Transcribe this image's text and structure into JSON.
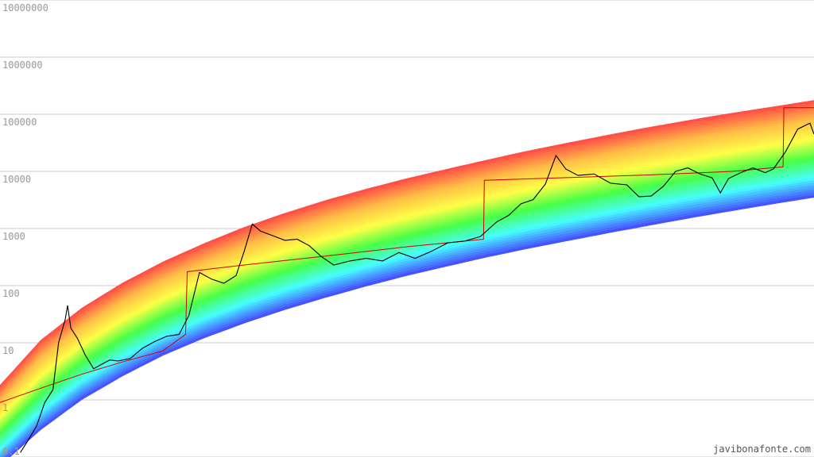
{
  "chart_data": {
    "type": "line",
    "title": "",
    "xlabel": "",
    "ylabel": "",
    "y_scale": "log",
    "ylim": [
      0.1,
      10000000
    ],
    "y_ticks": [
      {
        "value": 0.1,
        "label": "0.1"
      },
      {
        "value": 1,
        "label": "1"
      },
      {
        "value": 10,
        "label": "10"
      },
      {
        "value": 100,
        "label": "100"
      },
      {
        "value": 1000,
        "label": "1000"
      },
      {
        "value": 10000,
        "label": "10000"
      },
      {
        "value": 100000,
        "label": "100000"
      },
      {
        "value": 1000000,
        "label": "1000000"
      },
      {
        "value": 10000000,
        "label": "10000000"
      }
    ],
    "grid": true,
    "band": {
      "description": "rainbow band",
      "colors": [
        "#ff0000",
        "#ffa500",
        "#ffff00",
        "#00ff00",
        "#00ffff",
        "#0000ff"
      ],
      "upper": [
        [
          0,
          1.8
        ],
        [
          0.05,
          11
        ],
        [
          0.1,
          40
        ],
        [
          0.15,
          110
        ],
        [
          0.2,
          260
        ],
        [
          0.25,
          540
        ],
        [
          0.3,
          1050
        ],
        [
          0.35,
          1850
        ],
        [
          0.4,
          3100
        ],
        [
          0.45,
          4900
        ],
        [
          0.5,
          7500
        ],
        [
          0.55,
          11000
        ],
        [
          0.6,
          16000
        ],
        [
          0.65,
          23000
        ],
        [
          0.7,
          32000
        ],
        [
          0.75,
          44000
        ],
        [
          0.8,
          60000
        ],
        [
          0.85,
          80000
        ],
        [
          0.9,
          105000
        ],
        [
          0.95,
          135000
        ],
        [
          1.0,
          175000
        ]
      ],
      "lower": [
        [
          0,
          0.07
        ],
        [
          0.05,
          0.3
        ],
        [
          0.1,
          1
        ],
        [
          0.15,
          2.6
        ],
        [
          0.2,
          6
        ],
        [
          0.25,
          12
        ],
        [
          0.3,
          22
        ],
        [
          0.35,
          38
        ],
        [
          0.4,
          62
        ],
        [
          0.45,
          98
        ],
        [
          0.5,
          150
        ],
        [
          0.55,
          220
        ],
        [
          0.6,
          320
        ],
        [
          0.65,
          450
        ],
        [
          0.7,
          620
        ],
        [
          0.75,
          850
        ],
        [
          0.8,
          1150
        ],
        [
          0.85,
          1550
        ],
        [
          0.9,
          2050
        ],
        [
          0.95,
          2700
        ],
        [
          1.0,
          3500
        ]
      ]
    },
    "series": [
      {
        "color": "#cc0000",
        "values": [
          [
            0,
            0.9
          ],
          [
            0.05,
            1.6
          ],
          [
            0.1,
            2.8
          ],
          [
            0.15,
            4.6
          ],
          [
            0.2,
            7.2
          ],
          [
            0.228,
            14
          ],
          [
            0.23,
            175
          ],
          [
            0.3,
            230
          ],
          [
            0.4,
            330
          ],
          [
            0.5,
            480
          ],
          [
            0.594,
            650
          ],
          [
            0.595,
            7000
          ],
          [
            0.7,
            7800
          ],
          [
            0.8,
            8700
          ],
          [
            0.9,
            10000
          ],
          [
            0.962,
            12000
          ],
          [
            0.963,
            130000
          ],
          [
            1.0,
            130000
          ]
        ]
      },
      {
        "color": "#000000",
        "values": [
          [
            0.025,
            0.12
          ],
          [
            0.035,
            0.2
          ],
          [
            0.045,
            0.35
          ],
          [
            0.055,
            0.9
          ],
          [
            0.065,
            1.5
          ],
          [
            0.072,
            10
          ],
          [
            0.08,
            25
          ],
          [
            0.083,
            45
          ],
          [
            0.087,
            18
          ],
          [
            0.095,
            12
          ],
          [
            0.105,
            6
          ],
          [
            0.115,
            3.5
          ],
          [
            0.125,
            4.2
          ],
          [
            0.135,
            5
          ],
          [
            0.145,
            4.8
          ],
          [
            0.16,
            5.3
          ],
          [
            0.175,
            8
          ],
          [
            0.19,
            10.5
          ],
          [
            0.205,
            13
          ],
          [
            0.22,
            14
          ],
          [
            0.232,
            30
          ],
          [
            0.245,
            170
          ],
          [
            0.26,
            130
          ],
          [
            0.275,
            110
          ],
          [
            0.29,
            150
          ],
          [
            0.3,
            400
          ],
          [
            0.31,
            1200
          ],
          [
            0.32,
            900
          ],
          [
            0.335,
            750
          ],
          [
            0.35,
            620
          ],
          [
            0.365,
            650
          ],
          [
            0.38,
            500
          ],
          [
            0.395,
            320
          ],
          [
            0.41,
            230
          ],
          [
            0.43,
            270
          ],
          [
            0.45,
            300
          ],
          [
            0.47,
            270
          ],
          [
            0.49,
            380
          ],
          [
            0.51,
            300
          ],
          [
            0.53,
            400
          ],
          [
            0.55,
            560
          ],
          [
            0.57,
            600
          ],
          [
            0.59,
            720
          ],
          [
            0.61,
            1300
          ],
          [
            0.625,
            1700
          ],
          [
            0.64,
            2700
          ],
          [
            0.655,
            3200
          ],
          [
            0.67,
            6000
          ],
          [
            0.683,
            19000
          ],
          [
            0.695,
            11000
          ],
          [
            0.71,
            8500
          ],
          [
            0.73,
            9000
          ],
          [
            0.75,
            6200
          ],
          [
            0.77,
            5800
          ],
          [
            0.785,
            3600
          ],
          [
            0.8,
            3700
          ],
          [
            0.815,
            5500
          ],
          [
            0.83,
            10000
          ],
          [
            0.845,
            11500
          ],
          [
            0.86,
            9000
          ],
          [
            0.875,
            7700
          ],
          [
            0.885,
            4200
          ],
          [
            0.895,
            7500
          ],
          [
            0.91,
            9500
          ],
          [
            0.925,
            11500
          ],
          [
            0.94,
            9500
          ],
          [
            0.95,
            11000
          ],
          [
            0.965,
            22000
          ],
          [
            0.98,
            55000
          ],
          [
            0.995,
            70000
          ],
          [
            1.0,
            45000
          ]
        ]
      }
    ]
  },
  "credit": "javibonafonte.com"
}
